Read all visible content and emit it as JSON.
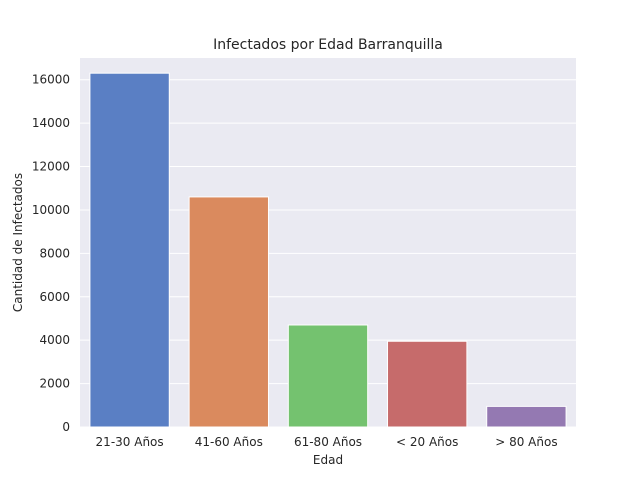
{
  "chart_data": {
    "type": "bar",
    "title": "Infectados por Edad Barranquilla",
    "xlabel": "Edad",
    "ylabel": "Cantidad de Infectados",
    "categories": [
      "21-30 Años",
      "41-60 Años",
      "61-80 Años",
      "< 20 Años",
      "> 80 Años"
    ],
    "values": [
      16300,
      10600,
      4700,
      3950,
      950
    ],
    "colors": [
      "#5a7fc4",
      "#da8a5e",
      "#74c26f",
      "#c66b6b",
      "#9479b2"
    ],
    "ylim": [
      0,
      17000
    ],
    "yticks": [
      0,
      2000,
      4000,
      6000,
      8000,
      10000,
      12000,
      14000,
      16000
    ],
    "grid": true,
    "background": "#eaeaf2"
  }
}
